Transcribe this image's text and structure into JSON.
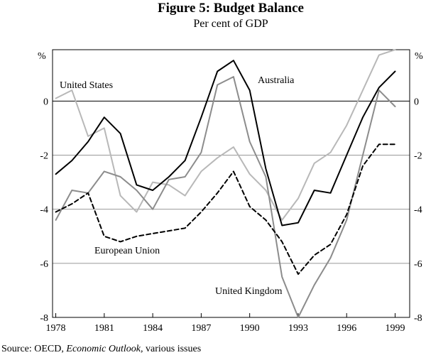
{
  "chart_data": {
    "type": "line",
    "title": "Figure 5: Budget Balance",
    "subtitle": "Per cent of GDP",
    "ylabel_left": "%",
    "ylabel_right": "%",
    "x": [
      1978,
      1979,
      1980,
      1981,
      1982,
      1983,
      1984,
      1985,
      1986,
      1987,
      1988,
      1989,
      1990,
      1991,
      1992,
      1993,
      1994,
      1995,
      1996,
      1997,
      1998,
      1999
    ],
    "xticks": [
      1978,
      1981,
      1984,
      1987,
      1990,
      1993,
      1996,
      1999
    ],
    "xtick_labels": [
      "1978",
      "1981",
      "1984",
      "1987",
      "1990",
      "1993",
      "1996",
      "1999"
    ],
    "xlim": [
      1977.8,
      1999.9
    ],
    "ylim": [
      -8,
      2
    ],
    "yticks": [
      0,
      -2,
      -4,
      -6,
      -8
    ],
    "ytick_labels": [
      "0",
      "-2",
      "-4",
      "-6",
      "-8"
    ],
    "zero_line": true,
    "gridlines": true,
    "series": [
      {
        "name": "United States",
        "label": "United States",
        "color": "#b8b8b8",
        "dash": "solid",
        "values": [
          0.1,
          0.4,
          -1.3,
          -1.0,
          -3.5,
          -4.1,
          -3.0,
          -3.1,
          -3.5,
          -2.6,
          -2.1,
          -1.7,
          -2.7,
          -3.3,
          -4.4,
          -3.6,
          -2.3,
          -1.9,
          -0.9,
          0.4,
          1.7,
          1.9
        ]
      },
      {
        "name": "Australia",
        "label": "Australia",
        "color": "#000000",
        "dash": "solid",
        "values": [
          -2.7,
          -2.2,
          -1.5,
          -0.6,
          -1.2,
          -3.1,
          -3.3,
          -2.8,
          -2.2,
          -0.6,
          1.1,
          1.5,
          0.4,
          -2.5,
          -4.6,
          -4.5,
          -3.3,
          -3.4,
          -2.0,
          -0.6,
          0.5,
          1.1
        ]
      },
      {
        "name": "United Kingdom",
        "label": "United Kingdom",
        "color": "#8c8c8c",
        "dash": "solid",
        "values": [
          -4.4,
          -3.3,
          -3.4,
          -2.6,
          -2.8,
          -3.3,
          -4.0,
          -2.9,
          -2.8,
          -1.9,
          0.6,
          0.9,
          -1.5,
          -2.8,
          -6.5,
          -8.0,
          -6.8,
          -5.8,
          -4.4,
          -2.0,
          0.4,
          -0.2
        ]
      },
      {
        "name": "European Union",
        "label": "European Union",
        "color": "#000000",
        "dash": "dashed",
        "values": [
          -4.1,
          -3.8,
          -3.4,
          -5.0,
          -5.2,
          -5.0,
          -4.9,
          -4.8,
          -4.7,
          -4.1,
          -3.4,
          -2.6,
          -3.9,
          -4.4,
          -5.2,
          -6.4,
          -5.7,
          -5.3,
          -4.2,
          -2.4,
          -1.6,
          -1.6
        ]
      }
    ]
  },
  "source": {
    "prefix": "Source: OECD, ",
    "publication": "Economic Outlook,",
    "suffix": " various issues"
  }
}
